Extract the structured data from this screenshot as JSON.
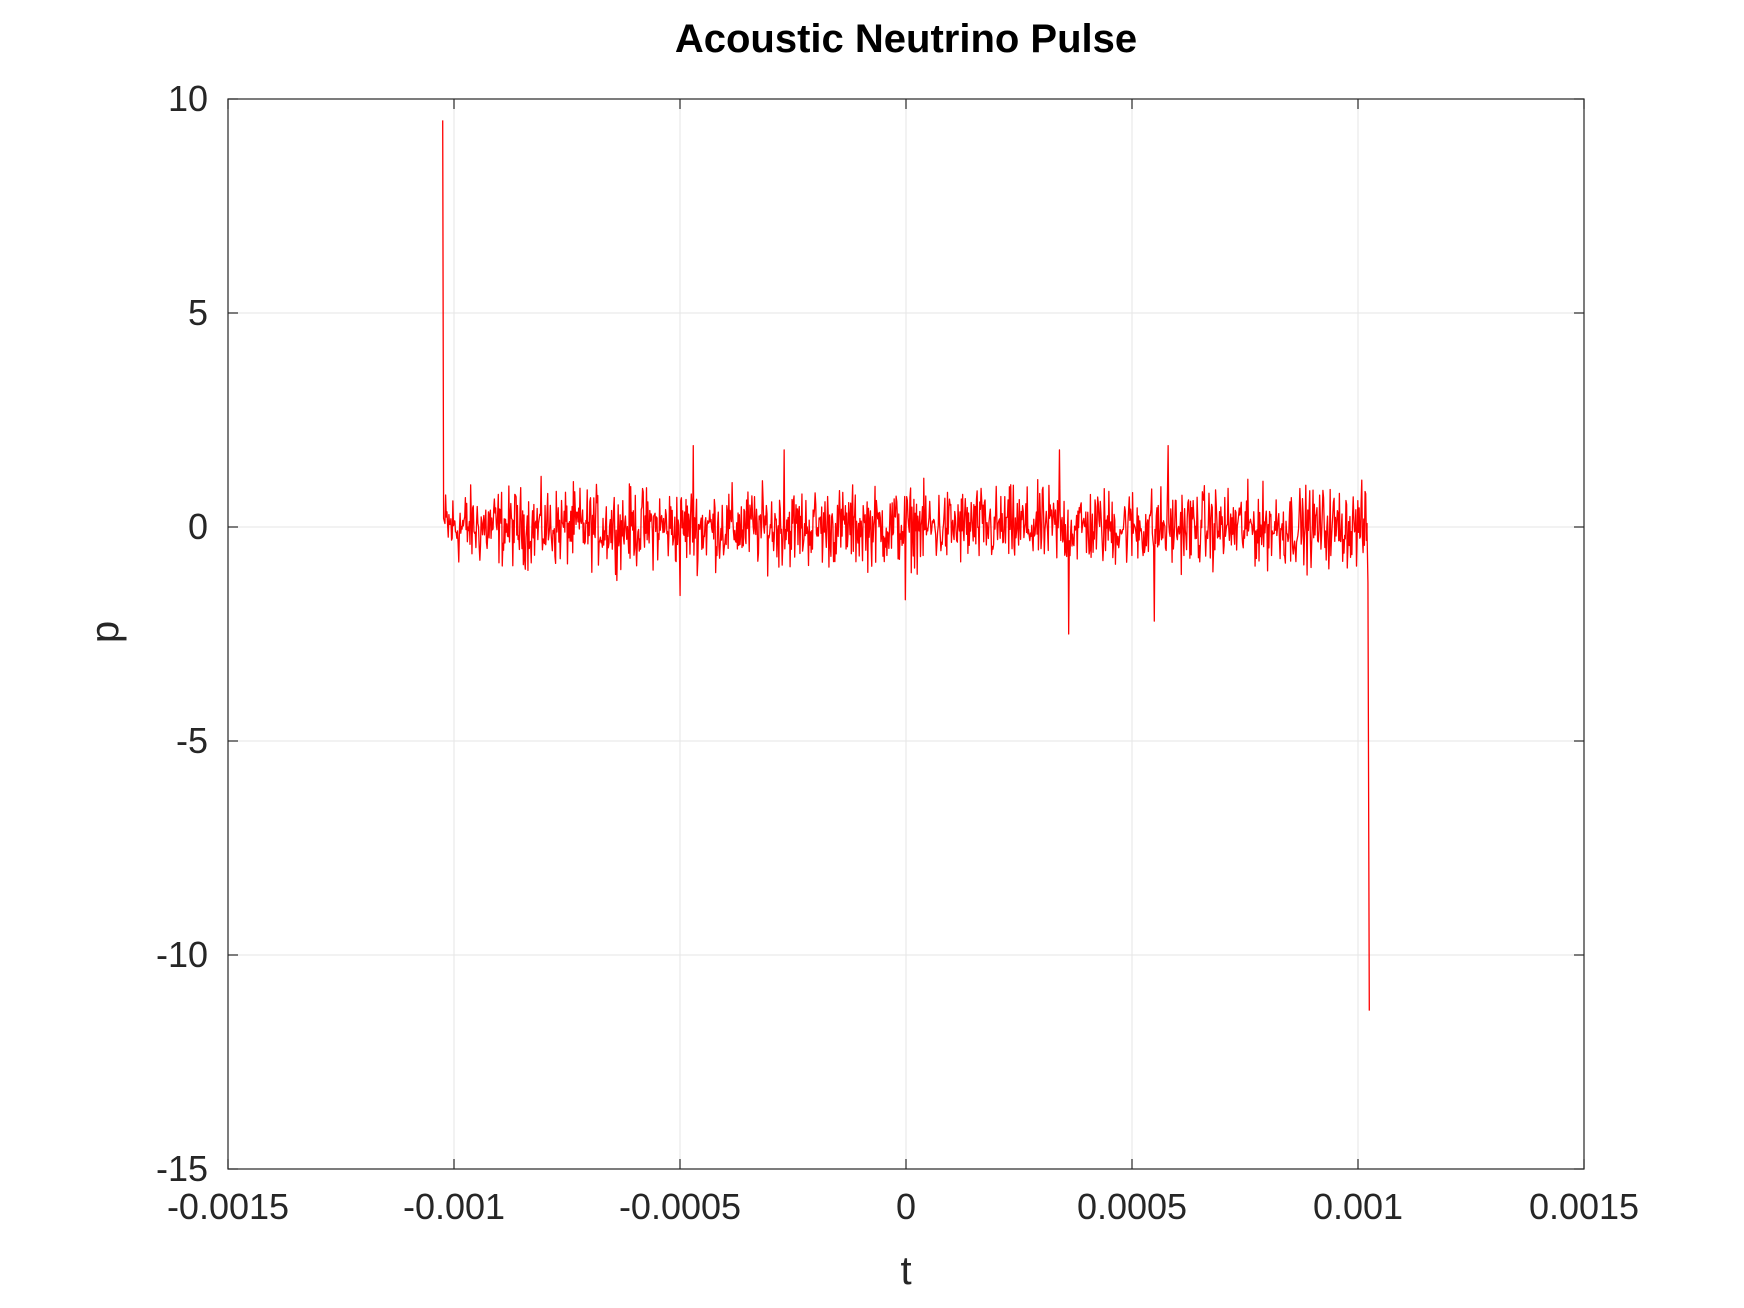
{
  "chart_data": {
    "type": "line",
    "title": "Acoustic Neutrino Pulse",
    "xlabel": "t",
    "ylabel": "p",
    "xlim": [
      -0.0015,
      0.0015
    ],
    "ylim": [
      -15,
      10
    ],
    "xticks": [
      -0.0015,
      -0.001,
      -0.0005,
      0,
      0.0005,
      0.001,
      0.0015
    ],
    "xtick_labels": [
      "-0.0015",
      "-0.001",
      "-0.0005",
      "0",
      "0.0005",
      "0.001",
      "0.0015"
    ],
    "yticks": [
      -15,
      -10,
      -5,
      0,
      5,
      10
    ],
    "ytick_labels": [
      "-15",
      "-10",
      "-5",
      "0",
      "5",
      "10"
    ],
    "grid": true,
    "series": [
      {
        "color": "#ff0000",
        "x_start": -0.001025,
        "x_end": 0.001025,
        "spikes": [
          {
            "x": -0.001025,
            "y": 9.5
          },
          {
            "x": -0.001023,
            "y": 0.2
          },
          {
            "x": 0.00102,
            "y": -0.1
          },
          {
            "x": 0.001022,
            "y": -1.3
          },
          {
            "x": 0.001025,
            "y": -11.3
          }
        ],
        "noise_amplitude_typical": 0.8,
        "noise_peaks": [
          {
            "x": -0.0005,
            "y": 1.6
          },
          {
            "x": -0.00047,
            "y": 1.9
          },
          {
            "x": -0.00027,
            "y": 1.8
          },
          {
            "x": 0.00034,
            "y": 1.8
          },
          {
            "x": 0.00058,
            "y": 1.9
          },
          {
            "x": 0.00036,
            "y": -2.5
          },
          {
            "x": 0.00055,
            "y": -2.2
          },
          {
            "x": -0.0005,
            "y": -1.6
          },
          {
            "x": -2e-06,
            "y": -1.7
          }
        ]
      }
    ]
  }
}
